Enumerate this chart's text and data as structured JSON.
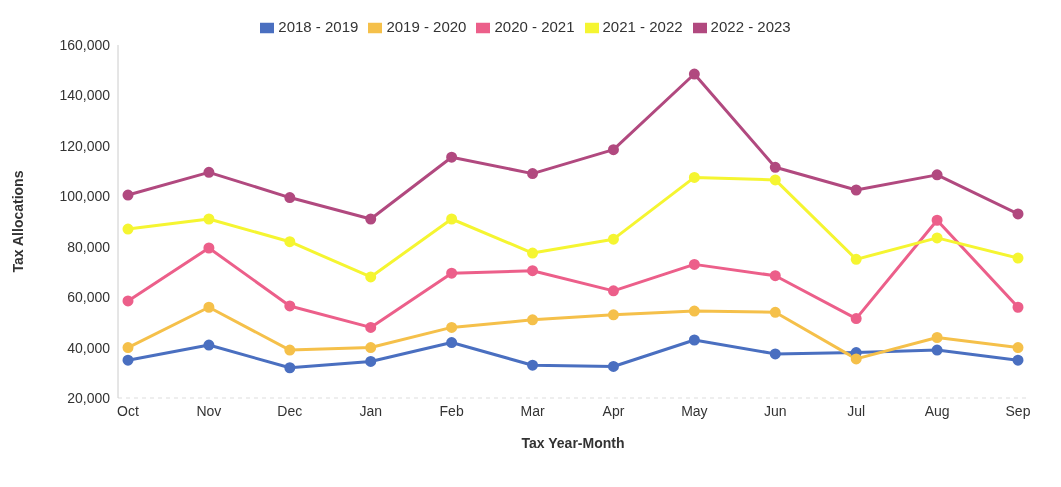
{
  "chart_data": {
    "type": "line",
    "xlabel": "Tax Year-Month",
    "ylabel": "Tax Allocations",
    "categories": [
      "Oct",
      "Nov",
      "Dec",
      "Jan",
      "Feb",
      "Mar",
      "Apr",
      "May",
      "Jun",
      "Jul",
      "Aug",
      "Sep"
    ],
    "series": [
      {
        "name": "2018 - 2019",
        "color": "#4a6fc0",
        "values": [
          35000,
          41000,
          32000,
          34500,
          42000,
          33000,
          32500,
          43000,
          37500,
          38000,
          39000,
          35000
        ]
      },
      {
        "name": "2019 - 2020",
        "color": "#f5c04a",
        "values": [
          40000,
          56000,
          39000,
          40000,
          48000,
          51000,
          53000,
          54500,
          54000,
          35500,
          44000,
          40000
        ]
      },
      {
        "name": "2020 - 2021",
        "color": "#ec5f8a",
        "values": [
          58500,
          79500,
          56500,
          48000,
          69500,
          70500,
          62500,
          73000,
          68500,
          51500,
          90500,
          56000
        ]
      },
      {
        "name": "2021 - 2022",
        "color": "#f5f531",
        "values": [
          87000,
          91000,
          82000,
          68000,
          91000,
          77500,
          83000,
          107500,
          106500,
          75000,
          83500,
          75500
        ]
      },
      {
        "name": "2022 - 2023",
        "color": "#b1497f",
        "values": [
          100500,
          109500,
          99500,
          91000,
          115500,
          109000,
          118500,
          148500,
          111500,
          102500,
          108500,
          93000
        ]
      }
    ],
    "ylim": [
      20000,
      160000
    ],
    "yticks": [
      {
        "value": 20000,
        "label": "20,000"
      },
      {
        "value": 40000,
        "label": "40,000"
      },
      {
        "value": 60000,
        "label": "60,000"
      },
      {
        "value": 80000,
        "label": "80,000"
      },
      {
        "value": 100000,
        "label": "100,000"
      },
      {
        "value": 120000,
        "label": "120,000"
      },
      {
        "value": 140000,
        "label": "140,000"
      },
      {
        "value": 160000,
        "label": "160,000"
      }
    ],
    "legend": "top",
    "marker": "circle",
    "line_style": "solid"
  }
}
